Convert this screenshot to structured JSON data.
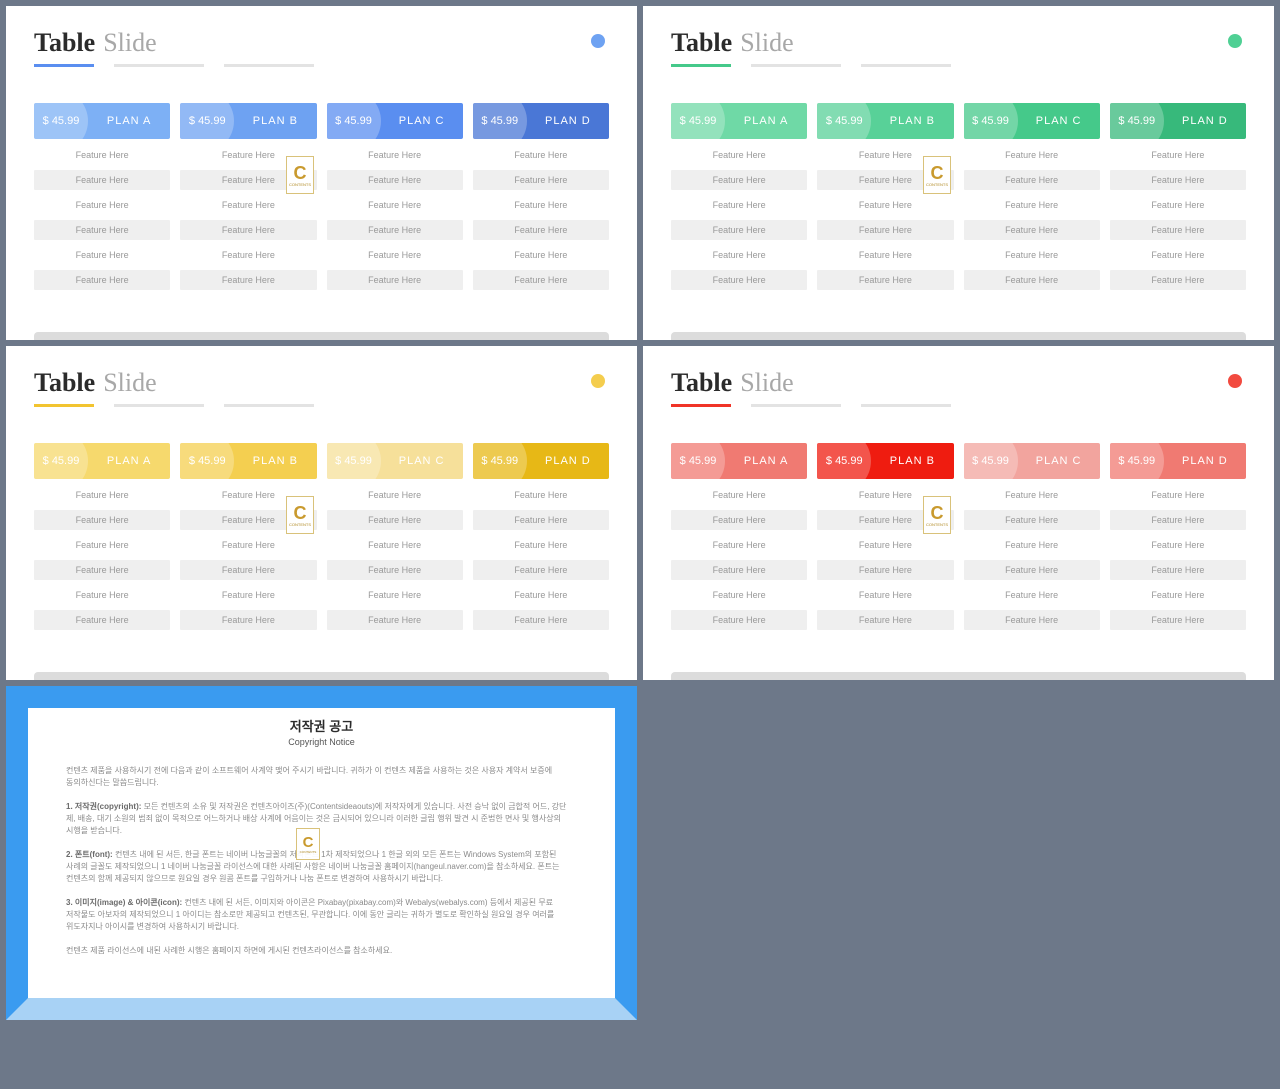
{
  "common": {
    "title_strong": "Table",
    "title_light": "Slide",
    "price": "$ 45.99",
    "plans": [
      "PLAN A",
      "PLAN B",
      "PLAN C",
      "PLAN D"
    ],
    "feature_text": "Feature Here",
    "feature_rows": 6,
    "bottom_bar_color": "#dcdcdc",
    "feature_bg": "#f4f4f4",
    "feature_bg_alt": "#ffffff",
    "feature_text_color": "#9a9a9a",
    "watermark_letter": "C",
    "watermark_sub": "CONTENTS"
  },
  "slides": [
    {
      "accent": "#5a8ef0",
      "underline_color": "#5a8ef0",
      "dot_color": "#6ea2f2",
      "plan_colors": [
        "#7db0f5",
        "#6ea2f2",
        "#5a8ef0",
        "#4a77d6"
      ]
    },
    {
      "accent": "#45c98a",
      "underline_color": "#45c98a",
      "dot_color": "#4fd094",
      "plan_colors": [
        "#6fd9a6",
        "#58d198",
        "#45c98a",
        "#37b97b"
      ]
    },
    {
      "accent": "#f2c430",
      "underline_color": "#f2c430",
      "dot_color": "#f4cd4e",
      "plan_colors": [
        "#f6d96d",
        "#f4cf50",
        "#f6e09a",
        "#e7b816"
      ]
    },
    {
      "accent": "#f03428",
      "underline_color": "#f03428",
      "dot_color": "#f24a3f",
      "plan_colors": [
        "#f07a72",
        "#ef1c10",
        "#f2a49e",
        "#f07a72"
      ]
    }
  ],
  "copyright": {
    "frame_main": "#3a9bf0",
    "frame_bottom": "#a8d2f5",
    "title": "저작권 공고",
    "subtitle": "Copyright Notice",
    "p0": "컨텐츠 제품을 사용하시기 전에 다음과 같이 소프트웨어 사계약 맺어 주시기 바랍니다. 귀하가 이 컨텐츠 제품을 사용하는 것은 사용자 계약서 보증에 동의하신다는 말씀드립니다.",
    "p1_lead": "1. 저작권(copyright):",
    "p1": " 모든 컨텐츠의 소유 및 저작권은 컨텐츠아이즈(주)(Contentsideaouts)에 저작자에게 있습니다. 사전 승낙 없이 금합적 어드, 강단 제, 배송, 대기 소원의 범죄 없이 목적으로 어느하거나 배상 사계에 어음이는 것은 금시되어 있으니라 이러한 글립 행위 발견 시 준법한 면사 및 행사상의 시행을 받습니다.",
    "p2_lead": "2. 폰트(font):",
    "p2": " 컨텐츠 내에 된 서든, 한글 폰트는 네이버 나눔글꼴의 저작폰트 1차 제작되었으나 1 한글 외의 모든 폰트는 Windows System의 포함된 사례의 글꼴도 제작되었으니 1 네이버 나눔글꼴 라이선스에 대한 사례된 사항은 네이버 나눔글꼴 홈페이지(hangeul.naver.com)을 참소하세요. 폰트는 컨텐츠의 함께 제공되지 않으므로 원요일 경우 원콤 폰트를 구입하거나 나눔 폰트로 변경하여 사용하시기 바랍니다.",
    "p3_lead": "3. 이미지(image) & 아이콘(icon):",
    "p3": " 컨텐츠 내에 된 서든, 이미지와 아이콘은 Pixabay(pixabay.com)와 Webalys(webalys.com) 등에서 제공된 무료 저작물도 아보자의 제작되었으니 1 아이디는 참소로만 제공되고 컨텐츠된, 무관합니다. 이에 동안 글리는 귀하가 별도로 확인하실 원요일 경우 여러를 위도자지나 아이시를 변경하여 사용하시기 바랍니다.",
    "p4": "컨텐츠 제품 라이선스에 내된 사례한 시행은 홈페이지 하면에 게시된 컨텐츠라이선스를 참소하세요."
  }
}
